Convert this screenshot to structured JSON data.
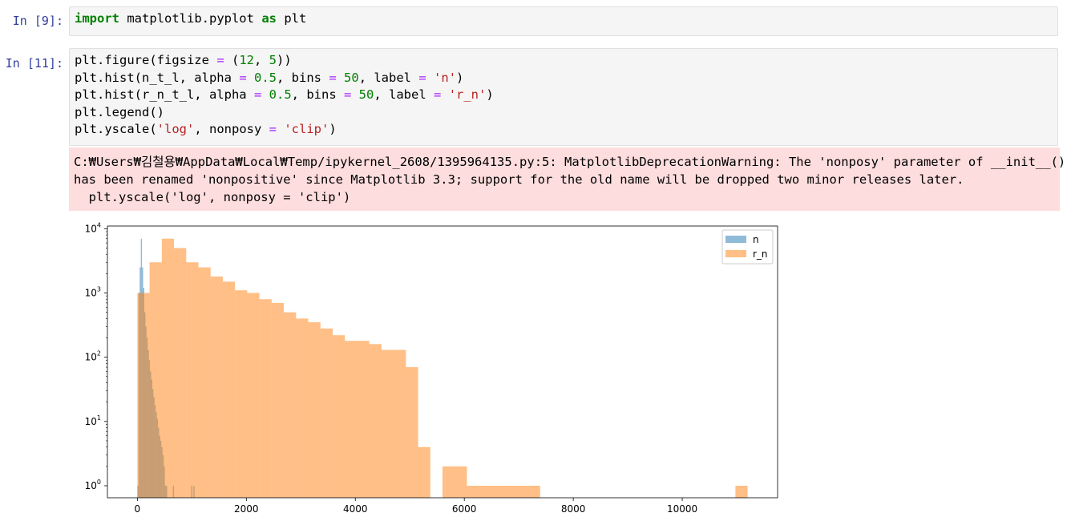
{
  "cells": [
    {
      "prompt": "In [9]:",
      "code_lines": [
        [
          {
            "t": "import",
            "c": "kw"
          },
          {
            "t": " matplotlib.pyplot "
          },
          {
            "t": "as",
            "c": "kw"
          },
          {
            "t": " plt"
          }
        ]
      ]
    },
    {
      "prompt": "In [11]:",
      "code_lines": [
        [
          {
            "t": "plt.figure(figsize "
          },
          {
            "t": "=",
            "c": "op"
          },
          {
            "t": " ("
          },
          {
            "t": "12",
            "c": "num"
          },
          {
            "t": ", "
          },
          {
            "t": "5",
            "c": "num"
          },
          {
            "t": "))"
          }
        ],
        [
          {
            "t": "plt.hist(n_t_l, alpha "
          },
          {
            "t": "=",
            "c": "op"
          },
          {
            "t": " "
          },
          {
            "t": "0.5",
            "c": "num"
          },
          {
            "t": ", bins "
          },
          {
            "t": "=",
            "c": "op"
          },
          {
            "t": " "
          },
          {
            "t": "50",
            "c": "num"
          },
          {
            "t": ", label "
          },
          {
            "t": "=",
            "c": "op"
          },
          {
            "t": " "
          },
          {
            "t": "'n'",
            "c": "str"
          },
          {
            "t": ")"
          }
        ],
        [
          {
            "t": "plt.hist(r_n_t_l, alpha "
          },
          {
            "t": "=",
            "c": "op"
          },
          {
            "t": " "
          },
          {
            "t": "0.5",
            "c": "num"
          },
          {
            "t": ", bins "
          },
          {
            "t": "=",
            "c": "op"
          },
          {
            "t": " "
          },
          {
            "t": "50",
            "c": "num"
          },
          {
            "t": ", label "
          },
          {
            "t": "=",
            "c": "op"
          },
          {
            "t": " "
          },
          {
            "t": "'r_n'",
            "c": "str"
          },
          {
            "t": ")"
          }
        ],
        [
          {
            "t": "plt.legend()"
          }
        ],
        [
          {
            "t": "plt.yscale("
          },
          {
            "t": "'log'",
            "c": "str"
          },
          {
            "t": ", nonposy "
          },
          {
            "t": "=",
            "c": "op"
          },
          {
            "t": " "
          },
          {
            "t": "'clip'",
            "c": "str"
          },
          {
            "t": ")"
          }
        ]
      ],
      "stderr_lines": [
        "C:₩Users₩김철용₩AppData₩Local₩Temp/ipykernel_2608/1395964135.py:5: MatplotlibDeprecationWarning: The 'nonposy' parameter of __init__()",
        "has been renamed 'nonpositive' since Matplotlib 3.3; support for the old name will be dropped two minor releases later.",
        "  plt.yscale('log', nonposy = 'clip')"
      ]
    }
  ],
  "chart_data": {
    "type": "bar",
    "yscale": "log",
    "xlim": [
      -550,
      11750
    ],
    "ylim": [
      0.65,
      11000
    ],
    "x_ticks": [
      0,
      2000,
      4000,
      6000,
      8000,
      10000
    ],
    "x_tick_labels": [
      "0",
      "2000",
      "4000",
      "6000",
      "8000",
      "10000"
    ],
    "y_ticks": [
      1,
      10,
      100,
      1000,
      10000
    ],
    "y_tick_labels": [
      {
        "base": "10",
        "exp": "0"
      },
      {
        "base": "10",
        "exp": "1"
      },
      {
        "base": "10",
        "exp": "2"
      },
      {
        "base": "10",
        "exp": "3"
      },
      {
        "base": "10",
        "exp": "4"
      }
    ],
    "grid": false,
    "legend_position": "upper right",
    "series": [
      {
        "name": "n",
        "color": "#1f77b4",
        "alpha": 0.5,
        "bin_start": 0,
        "bin_width": 21,
        "counts": [
          1,
          1000,
          2500,
          7000,
          2500,
          1200,
          500,
          300,
          200,
          130,
          90,
          60,
          45,
          32,
          24,
          18,
          14,
          11,
          8,
          6,
          5,
          4,
          3,
          2,
          1,
          1,
          0,
          0,
          0,
          0,
          0,
          1,
          0,
          0,
          0,
          0,
          0,
          0,
          0,
          0,
          0,
          0,
          0,
          0,
          0,
          0,
          0,
          1,
          0,
          1
        ]
      },
      {
        "name": "r_n",
        "color": "#ff7f0e",
        "alpha": 0.5,
        "bin_start": 0,
        "bin_width": 224,
        "counts": [
          1000,
          3000,
          7000,
          5000,
          3000,
          2500,
          1800,
          1500,
          1100,
          1000,
          800,
          700,
          500,
          400,
          350,
          280,
          220,
          180,
          180,
          160,
          130,
          130,
          70,
          4,
          0,
          2,
          2,
          1,
          1,
          1,
          1,
          1,
          1,
          0,
          0,
          0,
          0,
          0,
          0,
          0,
          0,
          0,
          0,
          0,
          0,
          0,
          0,
          0,
          0,
          1
        ]
      }
    ]
  }
}
